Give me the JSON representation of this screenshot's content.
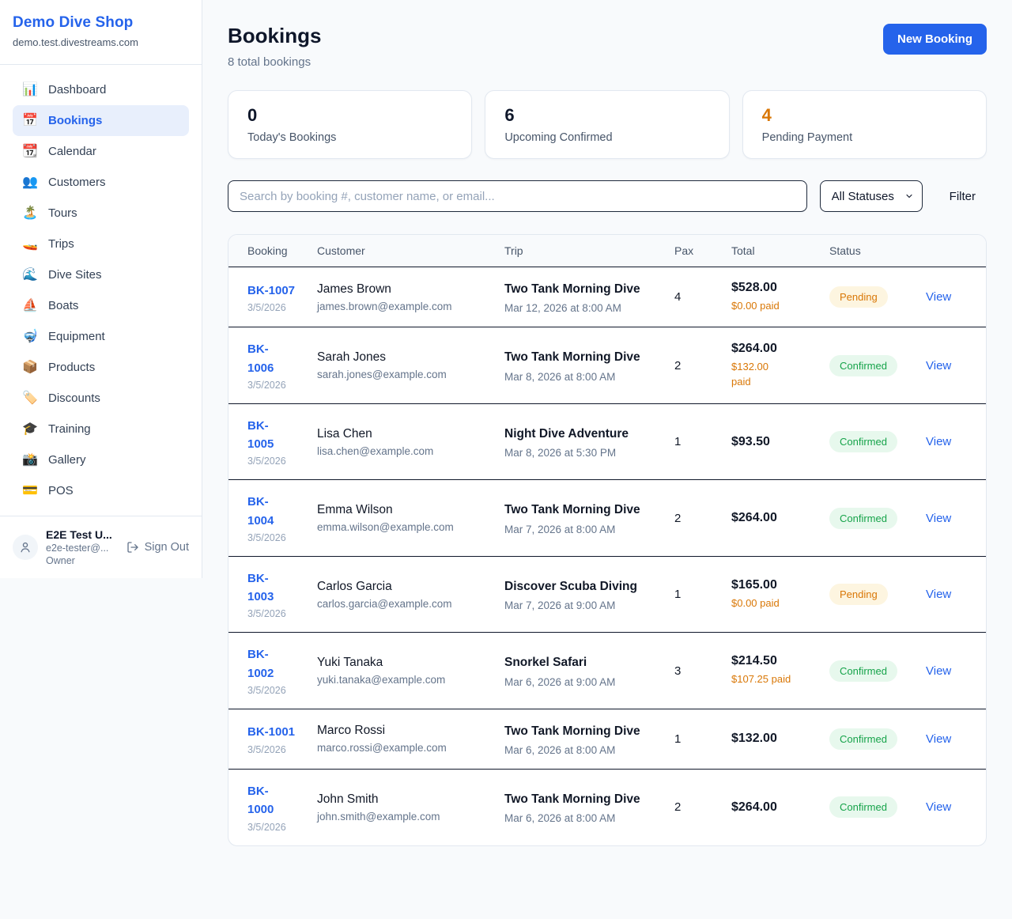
{
  "sidebar": {
    "shop_name": "Demo Dive Shop",
    "shop_domain": "demo.test.divestreams.com",
    "items": [
      {
        "icon_name": "dashboard-chart-icon",
        "glyph": "📊",
        "label": "Dashboard",
        "active": false
      },
      {
        "icon_name": "bookings-calendar-icon",
        "glyph": "📅",
        "label": "Bookings",
        "active": true
      },
      {
        "icon_name": "calendar-icon",
        "glyph": "📆",
        "label": "Calendar",
        "active": false
      },
      {
        "icon_name": "customers-people-icon",
        "glyph": "👥",
        "label": "Customers",
        "active": false
      },
      {
        "icon_name": "tours-island-icon",
        "glyph": "🏝️",
        "label": "Tours",
        "active": false
      },
      {
        "icon_name": "trips-speedboat-icon",
        "glyph": "🚤",
        "label": "Trips",
        "active": false
      },
      {
        "icon_name": "dive-sites-wave-icon",
        "glyph": "🌊",
        "label": "Dive Sites",
        "active": false
      },
      {
        "icon_name": "boats-sailboat-icon",
        "glyph": "⛵",
        "label": "Boats",
        "active": false
      },
      {
        "icon_name": "equipment-mask-icon",
        "glyph": "🤿",
        "label": "Equipment",
        "active": false
      },
      {
        "icon_name": "products-package-icon",
        "glyph": "📦",
        "label": "Products",
        "active": false
      },
      {
        "icon_name": "discounts-tag-icon",
        "glyph": "🏷️",
        "label": "Discounts",
        "active": false
      },
      {
        "icon_name": "training-grad-cap-icon",
        "glyph": "🎓",
        "label": "Training",
        "active": false
      },
      {
        "icon_name": "gallery-camera-icon",
        "glyph": "📸",
        "label": "Gallery",
        "active": false
      },
      {
        "icon_name": "pos-credit-card-icon",
        "glyph": "💳",
        "label": "POS",
        "active": false
      }
    ],
    "user": {
      "name": "E2E Test U...",
      "email": "e2e-tester@...",
      "role": "Owner",
      "sign_out_label": "Sign Out"
    }
  },
  "header": {
    "title": "Bookings",
    "subtitle": "8 total bookings",
    "new_booking_label": "New Booking"
  },
  "stats": [
    {
      "value": "0",
      "label": "Today's Bookings",
      "accent": false
    },
    {
      "value": "6",
      "label": "Upcoming Confirmed",
      "accent": false
    },
    {
      "value": "4",
      "label": "Pending Payment",
      "accent": true
    }
  ],
  "controls": {
    "search_placeholder": "Search by booking #, customer name, or email...",
    "status_select_value": "All Statuses",
    "filter_label": "Filter"
  },
  "table": {
    "columns": [
      "Booking",
      "Customer",
      "Trip",
      "Pax",
      "Total",
      "Status"
    ],
    "view_label": "View",
    "rows": [
      {
        "id": "BK-1007",
        "id_wrap": false,
        "date": "3/5/2026",
        "customer_name": "James Brown",
        "customer_email": "james.brown@example.com",
        "trip_name": "Two Tank Morning Dive",
        "trip_datetime": "Mar 12, 2026 at 8:00 AM",
        "pax": "4",
        "total": "$528.00",
        "paid": "$0.00 paid",
        "paid_wrap": false,
        "status": "Pending"
      },
      {
        "id": "BK-1006",
        "id_wrap": true,
        "date": "3/5/2026",
        "customer_name": "Sarah Jones",
        "customer_email": "sarah.jones@example.com",
        "trip_name": "Two Tank Morning Dive",
        "trip_datetime": "Mar 8, 2026 at 8:00 AM",
        "pax": "2",
        "total": "$264.00",
        "paid": "$132.00 paid",
        "paid_wrap": true,
        "status": "Confirmed"
      },
      {
        "id": "BK-1005",
        "id_wrap": true,
        "date": "3/5/2026",
        "customer_name": "Lisa Chen",
        "customer_email": "lisa.chen@example.com",
        "trip_name": "Night Dive Adventure",
        "trip_datetime": "Mar 8, 2026 at 5:30 PM",
        "pax": "1",
        "total": "$93.50",
        "paid": "",
        "paid_wrap": false,
        "status": "Confirmed"
      },
      {
        "id": "BK-1004",
        "id_wrap": true,
        "date": "3/5/2026",
        "customer_name": "Emma Wilson",
        "customer_email": "emma.wilson@example.com",
        "trip_name": "Two Tank Morning Dive",
        "trip_datetime": "Mar 7, 2026 at 8:00 AM",
        "pax": "2",
        "total": "$264.00",
        "paid": "",
        "paid_wrap": false,
        "status": "Confirmed"
      },
      {
        "id": "BK-1003",
        "id_wrap": true,
        "date": "3/5/2026",
        "customer_name": "Carlos Garcia",
        "customer_email": "carlos.garcia@example.com",
        "trip_name": "Discover Scuba Diving",
        "trip_datetime": "Mar 7, 2026 at 9:00 AM",
        "pax": "1",
        "total": "$165.00",
        "paid": "$0.00 paid",
        "paid_wrap": false,
        "status": "Pending"
      },
      {
        "id": "BK-1002",
        "id_wrap": true,
        "date": "3/5/2026",
        "customer_name": "Yuki Tanaka",
        "customer_email": "yuki.tanaka@example.com",
        "trip_name": "Snorkel Safari",
        "trip_datetime": "Mar 6, 2026 at 9:00 AM",
        "pax": "3",
        "total": "$214.50",
        "paid": "$107.25 paid",
        "paid_wrap": false,
        "status": "Confirmed"
      },
      {
        "id": "BK-1001",
        "id_wrap": false,
        "date": "3/5/2026",
        "customer_name": "Marco Rossi",
        "customer_email": "marco.rossi@example.com",
        "trip_name": "Two Tank Morning Dive",
        "trip_datetime": "Mar 6, 2026 at 8:00 AM",
        "pax": "1",
        "total": "$132.00",
        "paid": "",
        "paid_wrap": false,
        "status": "Confirmed"
      },
      {
        "id": "BK-1000",
        "id_wrap": true,
        "date": "3/5/2026",
        "customer_name": "John Smith",
        "customer_email": "john.smith@example.com",
        "trip_name": "Two Tank Morning Dive",
        "trip_datetime": "Mar 6, 2026 at 8:00 AM",
        "pax": "2",
        "total": "$264.00",
        "paid": "",
        "paid_wrap": false,
        "status": "Confirmed"
      }
    ]
  },
  "colors": {
    "brand_blue": "#2563eb",
    "accent_orange": "#d97706",
    "confirmed_green": "#16a34a",
    "pending_bg": "#fdf5e0",
    "confirmed_bg": "#e7f8ed",
    "page_bg": "#f8fafc"
  }
}
